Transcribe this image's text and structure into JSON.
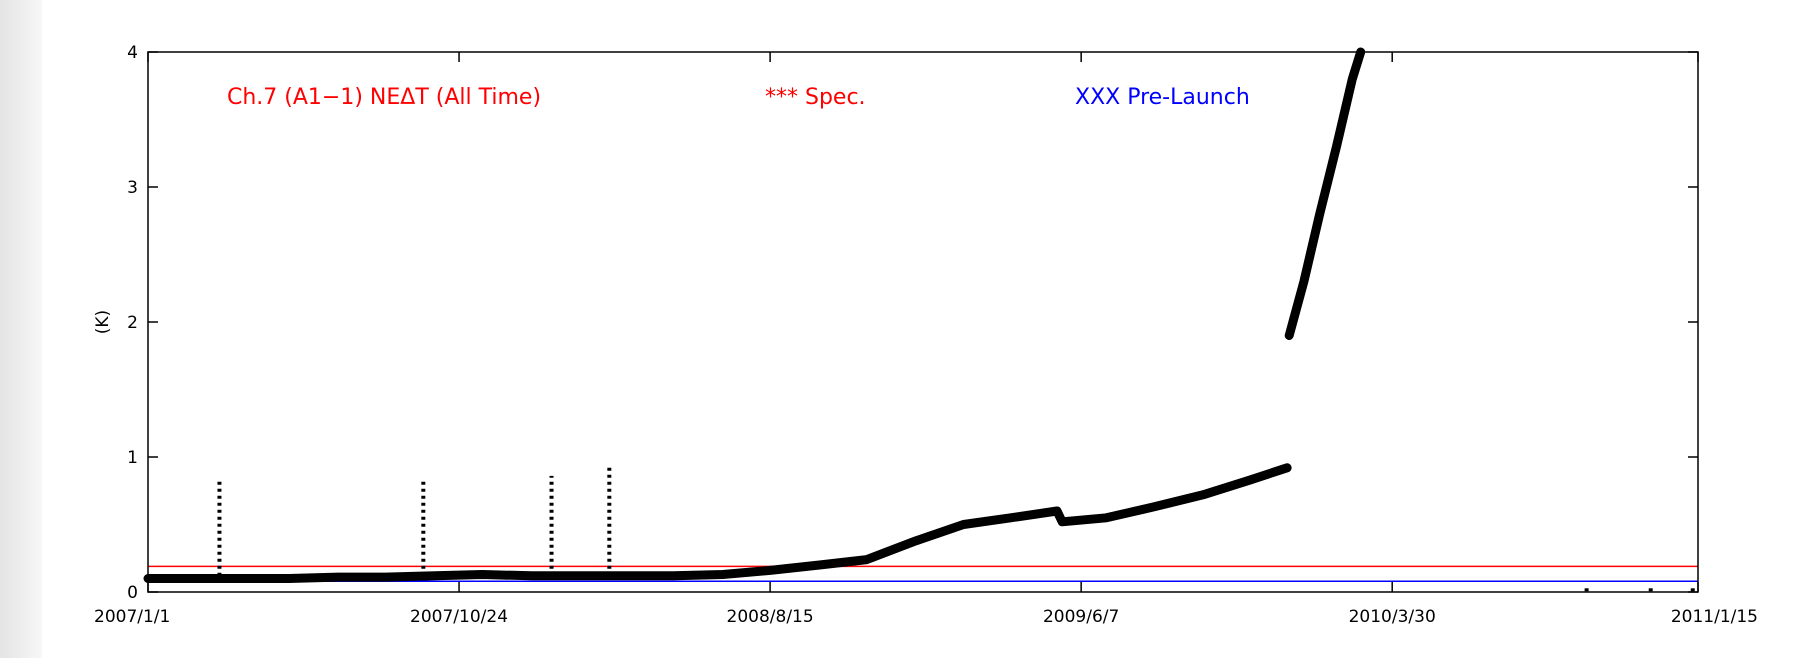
{
  "chart_data": {
    "type": "scatter",
    "title": "",
    "xlabel": "",
    "ylabel": "(K)",
    "ylim": [
      0,
      4
    ],
    "xlim": [
      "2007-01-01",
      "2011-01-15"
    ],
    "x_tick_labels": [
      "2007/1/1",
      "2007/10/24",
      "2008/8/15",
      "2009/6/7",
      "2010/3/30",
      "2011/1/15"
    ],
    "x_tick_dates": [
      "2007-01-01",
      "2007-10-24",
      "2008-08-15",
      "2009-06-07",
      "2010-03-30",
      "2011-01-15"
    ],
    "y_tick_labels": [
      "0",
      "1",
      "2",
      "3",
      "4"
    ],
    "y_tick_values": [
      0,
      1,
      2,
      3,
      4
    ],
    "grid": false,
    "annotations": [
      {
        "text": "Ch.7 (A1−1) NEΔT  (All Time)",
        "color": "#ff0000"
      },
      {
        "text": "*** Spec.",
        "color": "#ff0000"
      },
      {
        "text": "XXX Pre-Launch",
        "color": "#0000ff"
      }
    ],
    "reference_lines": [
      {
        "name": "Spec.",
        "y": 0.19,
        "color": "#ff0000"
      },
      {
        "name": "Pre-Launch",
        "y": 0.08,
        "color": "#0000ff"
      }
    ],
    "series": [
      {
        "color": "#000000",
        "points": [
          {
            "x": "2007-01-01",
            "y": 0.1
          },
          {
            "x": "2007-02-15",
            "y": 0.1
          },
          {
            "x": "2007-04-01",
            "y": 0.1
          },
          {
            "x": "2007-05-15",
            "y": 0.1
          },
          {
            "x": "2007-07-01",
            "y": 0.11
          },
          {
            "x": "2007-08-15",
            "y": 0.11
          },
          {
            "x": "2007-10-01",
            "y": 0.12
          },
          {
            "x": "2007-11-15",
            "y": 0.13
          },
          {
            "x": "2008-01-01",
            "y": 0.12
          },
          {
            "x": "2008-02-15",
            "y": 0.12
          },
          {
            "x": "2008-04-01",
            "y": 0.12
          },
          {
            "x": "2008-05-15",
            "y": 0.12
          },
          {
            "x": "2008-07-01",
            "y": 0.13
          },
          {
            "x": "2008-08-15",
            "y": 0.16
          },
          {
            "x": "2008-10-01",
            "y": 0.2
          },
          {
            "x": "2008-11-15",
            "y": 0.24
          },
          {
            "x": "2009-01-01",
            "y": 0.38
          },
          {
            "x": "2009-02-15",
            "y": 0.5
          },
          {
            "x": "2009-04-01",
            "y": 0.55
          },
          {
            "x": "2009-05-15",
            "y": 0.6
          },
          {
            "x": "2009-05-20",
            "y": 0.52
          },
          {
            "x": "2009-07-01",
            "y": 0.55
          },
          {
            "x": "2009-08-15",
            "y": 0.63
          },
          {
            "x": "2009-10-01",
            "y": 0.72
          },
          {
            "x": "2009-11-15",
            "y": 0.83
          },
          {
            "x": "2009-12-20",
            "y": 0.92
          },
          {
            "x": "2009-12-22",
            "y": 1.9
          },
          {
            "x": "2010-01-05",
            "y": 2.3
          },
          {
            "x": "2010-01-20",
            "y": 2.8
          },
          {
            "x": "2010-02-05",
            "y": 3.3
          },
          {
            "x": "2010-02-20",
            "y": 3.8
          },
          {
            "x": "2010-02-28",
            "y": 4.0
          }
        ]
      }
    ],
    "spikes": [
      {
        "x": "2007-03-10",
        "y": 0.83
      },
      {
        "x": "2007-09-20",
        "y": 0.83
      },
      {
        "x": "2008-01-20",
        "y": 0.86
      },
      {
        "x": "2008-03-15",
        "y": 0.93
      }
    ],
    "late_points": [
      {
        "x": "2010-10-01",
        "y": -0.03
      },
      {
        "x": "2010-12-01",
        "y": -0.03
      },
      {
        "x": "2011-01-10",
        "y": -0.03
      }
    ]
  }
}
